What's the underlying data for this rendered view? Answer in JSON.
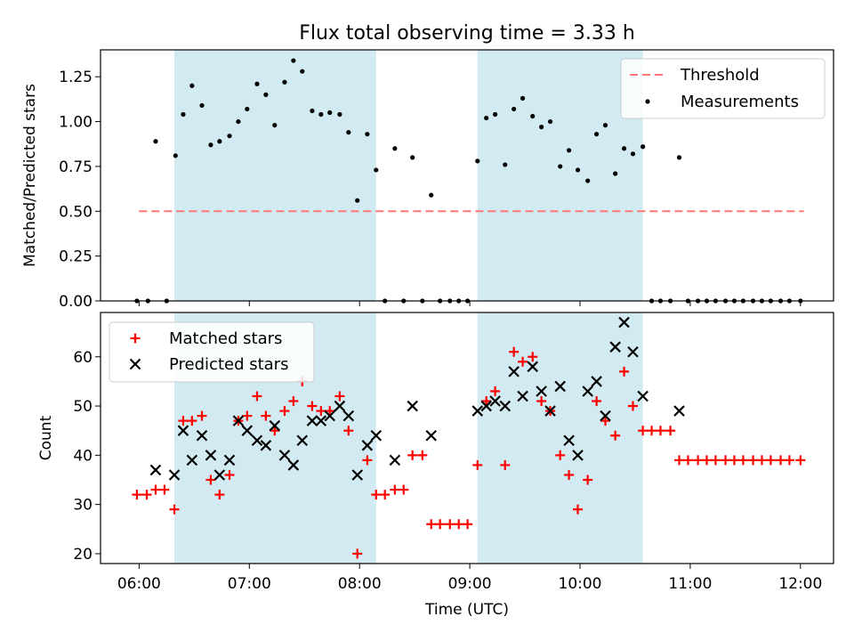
{
  "figure": {
    "title": "Flux total observing time = 3.33 h"
  },
  "colors": {
    "band": "#add8e6",
    "threshold": "#ff7777",
    "matched": "#ff0000",
    "predicted": "#000000",
    "measure": "#000000"
  },
  "chart_data": [
    {
      "type": "scatter",
      "ylabel": "Matched/Predicted stars",
      "xlim": [
        5.65,
        12.3
      ],
      "ylim": [
        0,
        1.4
      ],
      "yticks": [
        0.0,
        0.25,
        0.5,
        0.75,
        1.0,
        1.25
      ],
      "ytick_labels": [
        "0.00",
        "0.25",
        "0.50",
        "0.75",
        "1.00",
        "1.25"
      ],
      "shaded_intervals_hours": [
        [
          6.32,
          8.15
        ],
        [
          9.07,
          10.57
        ]
      ],
      "legend": {
        "position": "upper right",
        "threshold_label": "Threshold",
        "measurements_label": "Measurements"
      },
      "threshold": {
        "y": 0.5,
        "x_start": 6.0,
        "x_end": 12.03
      },
      "series": [
        {
          "name": "Measurements",
          "points": [
            [
              5.98,
              0.0
            ],
            [
              6.08,
              0.0
            ],
            [
              6.15,
              0.89
            ],
            [
              6.25,
              0.0
            ],
            [
              6.33,
              0.81
            ],
            [
              6.4,
              1.04
            ],
            [
              6.48,
              1.2
            ],
            [
              6.57,
              1.09
            ],
            [
              6.65,
              0.87
            ],
            [
              6.73,
              0.89
            ],
            [
              6.82,
              0.92
            ],
            [
              6.9,
              1.0
            ],
            [
              6.98,
              1.07
            ],
            [
              7.07,
              1.21
            ],
            [
              7.15,
              1.15
            ],
            [
              7.23,
              0.98
            ],
            [
              7.32,
              1.22
            ],
            [
              7.4,
              1.34
            ],
            [
              7.48,
              1.28
            ],
            [
              7.57,
              1.06
            ],
            [
              7.65,
              1.04
            ],
            [
              7.73,
              1.05
            ],
            [
              7.82,
              1.04
            ],
            [
              7.9,
              0.94
            ],
            [
              7.98,
              0.56
            ],
            [
              8.07,
              0.93
            ],
            [
              8.15,
              0.73
            ],
            [
              8.23,
              0.0
            ],
            [
              8.32,
              0.85
            ],
            [
              8.4,
              0.0
            ],
            [
              8.48,
              0.8
            ],
            [
              8.57,
              0.0
            ],
            [
              8.65,
              0.59
            ],
            [
              8.73,
              0.0
            ],
            [
              8.82,
              0.0
            ],
            [
              8.9,
              0.0
            ],
            [
              8.98,
              0.0
            ],
            [
              9.07,
              0.78
            ],
            [
              9.15,
              1.02
            ],
            [
              9.23,
              1.04
            ],
            [
              9.32,
              0.76
            ],
            [
              9.4,
              1.07
            ],
            [
              9.48,
              1.13
            ],
            [
              9.57,
              1.03
            ],
            [
              9.65,
              0.97
            ],
            [
              9.73,
              1.0
            ],
            [
              9.82,
              0.75
            ],
            [
              9.9,
              0.84
            ],
            [
              9.98,
              0.73
            ],
            [
              10.07,
              0.67
            ],
            [
              10.15,
              0.93
            ],
            [
              10.23,
              0.98
            ],
            [
              10.32,
              0.71
            ],
            [
              10.4,
              0.85
            ],
            [
              10.48,
              0.82
            ],
            [
              10.57,
              0.86
            ],
            [
              10.65,
              0.0
            ],
            [
              10.73,
              0.0
            ],
            [
              10.82,
              0.0
            ],
            [
              10.9,
              0.8
            ],
            [
              10.98,
              0.0
            ],
            [
              11.07,
              0.0
            ],
            [
              11.15,
              0.0
            ],
            [
              11.23,
              0.0
            ],
            [
              11.32,
              0.0
            ],
            [
              11.4,
              0.0
            ],
            [
              11.48,
              0.0
            ],
            [
              11.57,
              0.0
            ],
            [
              11.65,
              0.0
            ],
            [
              11.73,
              0.0
            ],
            [
              11.82,
              0.0
            ],
            [
              11.9,
              0.0
            ],
            [
              12.0,
              0.0
            ]
          ]
        }
      ]
    },
    {
      "type": "scatter",
      "ylabel": "Count",
      "xlabel": "Time (UTC)",
      "xlim": [
        5.65,
        12.3
      ],
      "ylim": [
        18,
        69
      ],
      "xticks": [
        6,
        7,
        8,
        9,
        10,
        11,
        12
      ],
      "xtick_labels": [
        "06:00",
        "07:00",
        "08:00",
        "09:00",
        "10:00",
        "11:00",
        "12:00"
      ],
      "yticks": [
        20,
        30,
        40,
        50,
        60
      ],
      "ytick_labels": [
        "20",
        "30",
        "40",
        "50",
        "60"
      ],
      "shaded_intervals_hours": [
        [
          6.32,
          8.15
        ],
        [
          9.07,
          10.57
        ]
      ],
      "legend": {
        "position": "upper left"
      },
      "series": [
        {
          "name": "Matched stars",
          "marker": "plus",
          "points": [
            [
              5.98,
              32
            ],
            [
              6.07,
              32
            ],
            [
              6.15,
              33
            ],
            [
              6.23,
              33
            ],
            [
              6.32,
              29
            ],
            [
              6.4,
              47
            ],
            [
              6.48,
              47
            ],
            [
              6.57,
              48
            ],
            [
              6.65,
              35
            ],
            [
              6.73,
              32
            ],
            [
              6.82,
              36
            ],
            [
              6.9,
              47
            ],
            [
              6.98,
              48
            ],
            [
              7.07,
              52
            ],
            [
              7.15,
              48
            ],
            [
              7.23,
              45
            ],
            [
              7.32,
              49
            ],
            [
              7.4,
              51
            ],
            [
              7.48,
              55
            ],
            [
              7.57,
              50
            ],
            [
              7.65,
              49
            ],
            [
              7.73,
              49
            ],
            [
              7.82,
              52
            ],
            [
              7.9,
              45
            ],
            [
              7.98,
              20
            ],
            [
              8.07,
              39
            ],
            [
              8.15,
              32
            ],
            [
              8.23,
              32
            ],
            [
              8.32,
              33
            ],
            [
              8.4,
              33
            ],
            [
              8.48,
              40
            ],
            [
              8.57,
              40
            ],
            [
              8.65,
              26
            ],
            [
              8.73,
              26
            ],
            [
              8.82,
              26
            ],
            [
              8.9,
              26
            ],
            [
              8.98,
              26
            ],
            [
              9.07,
              38
            ],
            [
              9.15,
              51
            ],
            [
              9.23,
              53
            ],
            [
              9.32,
              38
            ],
            [
              9.4,
              61
            ],
            [
              9.48,
              59
            ],
            [
              9.57,
              60
            ],
            [
              9.65,
              51
            ],
            [
              9.73,
              49
            ],
            [
              9.82,
              40
            ],
            [
              9.9,
              36
            ],
            [
              9.98,
              29
            ],
            [
              10.07,
              35
            ],
            [
              10.15,
              51
            ],
            [
              10.23,
              47
            ],
            [
              10.32,
              44
            ],
            [
              10.4,
              57
            ],
            [
              10.48,
              50
            ],
            [
              10.57,
              45
            ],
            [
              10.65,
              45
            ],
            [
              10.73,
              45
            ],
            [
              10.82,
              45
            ],
            [
              10.9,
              39
            ],
            [
              10.98,
              39
            ],
            [
              11.07,
              39
            ],
            [
              11.15,
              39
            ],
            [
              11.23,
              39
            ],
            [
              11.32,
              39
            ],
            [
              11.4,
              39
            ],
            [
              11.48,
              39
            ],
            [
              11.57,
              39
            ],
            [
              11.65,
              39
            ],
            [
              11.73,
              39
            ],
            [
              11.82,
              39
            ],
            [
              11.9,
              39
            ],
            [
              12.0,
              39
            ]
          ]
        },
        {
          "name": "Predicted stars",
          "marker": "x",
          "points": [
            [
              6.15,
              37
            ],
            [
              6.32,
              36
            ],
            [
              6.4,
              45
            ],
            [
              6.48,
              39
            ],
            [
              6.57,
              44
            ],
            [
              6.65,
              40
            ],
            [
              6.73,
              36
            ],
            [
              6.82,
              39
            ],
            [
              6.9,
              47
            ],
            [
              6.98,
              45
            ],
            [
              7.07,
              43
            ],
            [
              7.15,
              42
            ],
            [
              7.23,
              46
            ],
            [
              7.32,
              40
            ],
            [
              7.4,
              38
            ],
            [
              7.48,
              43
            ],
            [
              7.57,
              47
            ],
            [
              7.65,
              47
            ],
            [
              7.73,
              48
            ],
            [
              7.82,
              50
            ],
            [
              7.9,
              48
            ],
            [
              7.98,
              36
            ],
            [
              8.07,
              42
            ],
            [
              8.15,
              44
            ],
            [
              8.32,
              39
            ],
            [
              8.48,
              50
            ],
            [
              8.65,
              44
            ],
            [
              9.07,
              49
            ],
            [
              9.15,
              50
            ],
            [
              9.23,
              51
            ],
            [
              9.32,
              50
            ],
            [
              9.4,
              57
            ],
            [
              9.48,
              52
            ],
            [
              9.57,
              58
            ],
            [
              9.65,
              53
            ],
            [
              9.73,
              49
            ],
            [
              9.82,
              54
            ],
            [
              9.9,
              43
            ],
            [
              9.98,
              40
            ],
            [
              10.07,
              53
            ],
            [
              10.15,
              55
            ],
            [
              10.23,
              48
            ],
            [
              10.32,
              62
            ],
            [
              10.4,
              67
            ],
            [
              10.48,
              61
            ],
            [
              10.57,
              52
            ],
            [
              10.9,
              49
            ]
          ]
        }
      ]
    }
  ]
}
